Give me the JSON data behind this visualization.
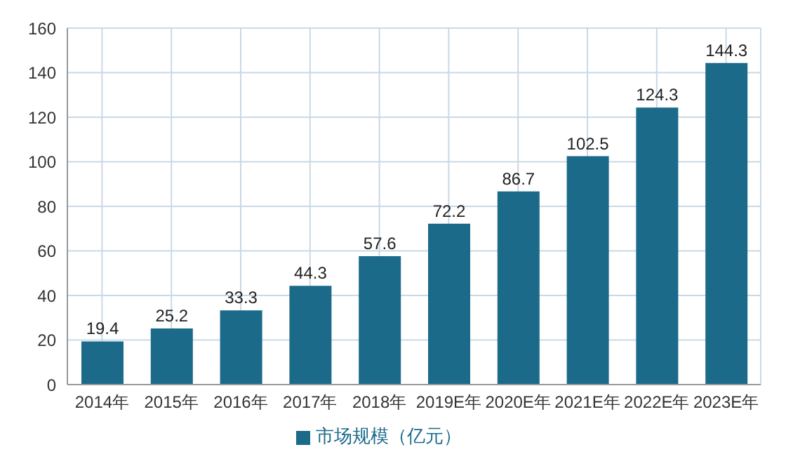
{
  "chart_data": {
    "type": "bar",
    "categories": [
      "2014年",
      "2015年",
      "2016年",
      "2017年",
      "2018年",
      "2019E年",
      "2020E年",
      "2021E年",
      "2022E年",
      "2023E年"
    ],
    "series": [
      {
        "name": "市场规模（亿元）",
        "color": "#1b6a8a",
        "values": [
          19.4,
          25.2,
          33.3,
          44.3,
          57.6,
          72.2,
          86.7,
          102.5,
          124.3,
          144.3
        ]
      }
    ],
    "ylim": [
      0,
      160
    ],
    "yticks": [
      0,
      20,
      40,
      60,
      80,
      100,
      120,
      140,
      160
    ],
    "grid": true,
    "legend": "bottom",
    "data_labels": true
  }
}
